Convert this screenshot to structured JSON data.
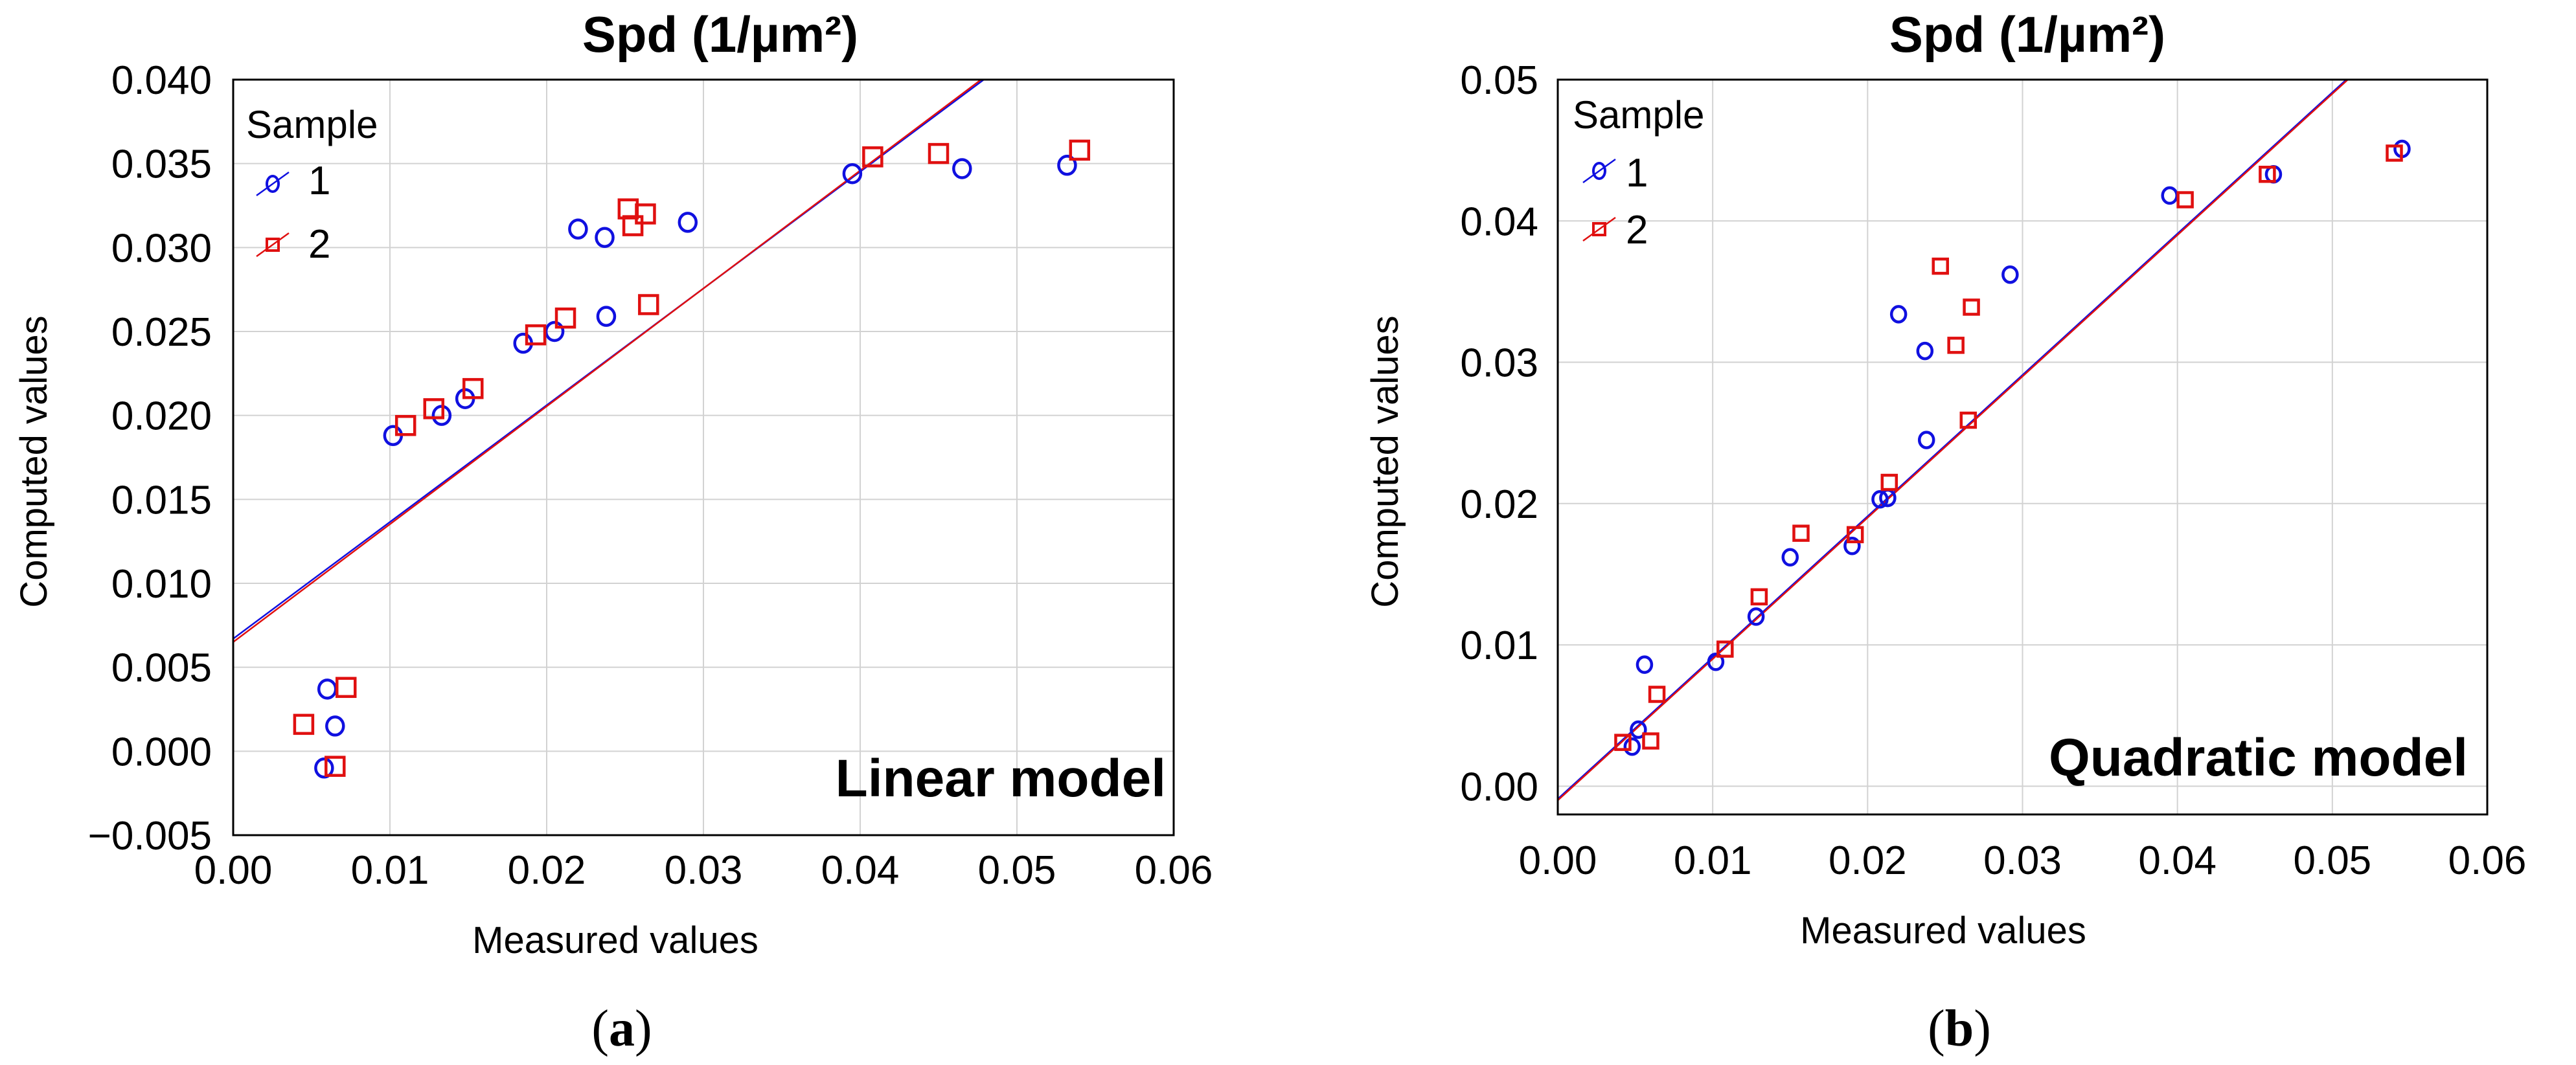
{
  "chart_data": [
    {
      "type": "scatter",
      "panel": "a",
      "title": "Spd (1/µm²)",
      "xlabel": "Measured values",
      "ylabel": "Computed values",
      "xlim": [
        0.0,
        0.06
      ],
      "ylim": [
        -0.005,
        0.04
      ],
      "xticks": [
        "0.00",
        "0.01",
        "0.02",
        "0.03",
        "0.04",
        "0.05",
        "0.06"
      ],
      "yticks": [
        "−0.005",
        "0.000",
        "0.005",
        "0.010",
        "0.015",
        "0.020",
        "0.025",
        "0.030",
        "0.035",
        "0.040"
      ],
      "xtick_values": [
        0.0,
        0.01,
        0.02,
        0.03,
        0.04,
        0.05,
        0.06
      ],
      "ytick_values": [
        -0.005,
        0.0,
        0.005,
        0.01,
        0.015,
        0.02,
        0.025,
        0.03,
        0.035,
        0.04
      ],
      "grid": true,
      "legend_title": "Sample",
      "legend_position": "top-left",
      "annotation": "Linear model",
      "caption_label": "a",
      "series": [
        {
          "name": "1",
          "color": "#1010e0",
          "marker": "circle",
          "points": [
            [
              0.006,
              0.0037
            ],
            [
              0.0065,
              0.0015
            ],
            [
              0.0058,
              -0.001
            ],
            [
              0.0102,
              0.0188
            ],
            [
              0.0133,
              0.02
            ],
            [
              0.0148,
              0.021
            ],
            [
              0.0185,
              0.0243
            ],
            [
              0.0205,
              0.025
            ],
            [
              0.022,
              0.0311
            ],
            [
              0.0237,
              0.0306
            ],
            [
              0.0238,
              0.0259
            ],
            [
              0.029,
              0.0315
            ],
            [
              0.0395,
              0.0344
            ],
            [
              0.0465,
              0.0347
            ],
            [
              0.0532,
              0.0349
            ]
          ],
          "fit": {
            "intercept": 0.0067,
            "slope": 0.6954
          }
        },
        {
          "name": "2",
          "color": "#e01010",
          "marker": "square",
          "points": [
            [
              0.0045,
              0.0016
            ],
            [
              0.0072,
              0.0038
            ],
            [
              0.0065,
              -0.0009
            ],
            [
              0.011,
              0.0194
            ],
            [
              0.0128,
              0.0204
            ],
            [
              0.0153,
              0.0216
            ],
            [
              0.0193,
              0.0248
            ],
            [
              0.0212,
              0.0258
            ],
            [
              0.0252,
              0.0323
            ],
            [
              0.0255,
              0.0313
            ],
            [
              0.0263,
              0.032
            ],
            [
              0.0265,
              0.0266
            ],
            [
              0.0408,
              0.0354
            ],
            [
              0.045,
              0.0356
            ],
            [
              0.054,
              0.0358
            ]
          ],
          "fit": {
            "intercept": 0.0065,
            "slope": 0.7021
          }
        }
      ]
    },
    {
      "type": "scatter",
      "panel": "b",
      "title": "Spd (1/µm²)",
      "xlabel": "Measured values",
      "ylabel": "Computed values",
      "xlim": [
        0.0,
        0.06
      ],
      "ylim": [
        -0.002,
        0.05
      ],
      "xticks": [
        "0.00",
        "0.01",
        "0.02",
        "0.03",
        "0.04",
        "0.05",
        "0.06"
      ],
      "yticks": [
        "0.00",
        "0.01",
        "0.02",
        "0.03",
        "0.04",
        "0.05"
      ],
      "xtick_values": [
        0.0,
        0.01,
        0.02,
        0.03,
        0.04,
        0.05,
        0.06
      ],
      "ytick_values": [
        0.0,
        0.01,
        0.02,
        0.03,
        0.04,
        0.05
      ],
      "grid": true,
      "legend_title": "Sample",
      "legend_position": "top-left",
      "annotation": "Quadratic model",
      "caption_label": "b",
      "series": [
        {
          "name": "1",
          "color": "#1010e0",
          "marker": "circle",
          "points": [
            [
              0.0048,
              0.0028
            ],
            [
              0.0052,
              0.004
            ],
            [
              0.0056,
              0.0086
            ],
            [
              0.0102,
              0.0088
            ],
            [
              0.0128,
              0.012
            ],
            [
              0.015,
              0.0162
            ],
            [
              0.019,
              0.017
            ],
            [
              0.0208,
              0.0203
            ],
            [
              0.0213,
              0.0204
            ],
            [
              0.022,
              0.0334
            ],
            [
              0.0237,
              0.0308
            ],
            [
              0.0238,
              0.0245
            ],
            [
              0.0292,
              0.0362
            ],
            [
              0.0395,
              0.0418
            ],
            [
              0.0462,
              0.0433
            ],
            [
              0.0545,
              0.0451
            ]
          ],
          "fit": {
            "intercept": -0.0009,
            "slope": 1.0
          }
        },
        {
          "name": "2",
          "color": "#e01010",
          "marker": "square",
          "points": [
            [
              0.0042,
              0.0031
            ],
            [
              0.006,
              0.0032
            ],
            [
              0.0064,
              0.0065
            ],
            [
              0.0108,
              0.0097
            ],
            [
              0.013,
              0.0134
            ],
            [
              0.0157,
              0.0179
            ],
            [
              0.0192,
              0.0178
            ],
            [
              0.0214,
              0.0215
            ],
            [
              0.0247,
              0.0368
            ],
            [
              0.0257,
              0.0312
            ],
            [
              0.0265,
              0.0259
            ],
            [
              0.0267,
              0.0339
            ],
            [
              0.0405,
              0.0415
            ],
            [
              0.0458,
              0.0433
            ],
            [
              0.054,
              0.0448
            ]
          ],
          "fit": {
            "intercept": -0.001,
            "slope": 1.0
          }
        }
      ]
    }
  ]
}
